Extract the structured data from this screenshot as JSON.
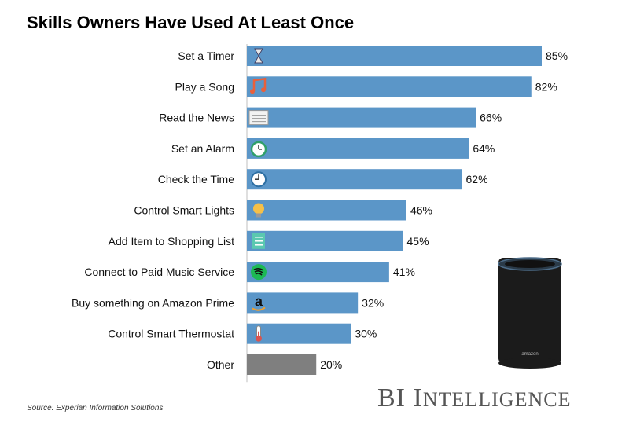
{
  "chart_data": {
    "type": "bar",
    "orientation": "horizontal",
    "title": "Skills Owners Have Used At Least Once",
    "categories": [
      "Set a Timer",
      "Play a Song",
      "Read the News",
      "Set an Alarm",
      "Check the Time",
      "Control Smart Lights",
      "Add Item to Shopping List",
      "Connect to Paid Music Service",
      "Buy something on Amazon Prime",
      "Control Smart Thermostat",
      "Other"
    ],
    "values": [
      85,
      82,
      66,
      64,
      62,
      46,
      45,
      41,
      32,
      30,
      20
    ],
    "data_labels": [
      "85%",
      "82%",
      "66%",
      "64%",
      "62%",
      "46%",
      "45%",
      "41%",
      "32%",
      "30%",
      "20%"
    ],
    "icons": [
      "hourglass-icon",
      "music-note-icon",
      "newspaper-icon",
      "alarm-clock-icon",
      "clock-icon",
      "lightbulb-icon",
      "shopping-list-icon",
      "spotify-icon",
      "amazon-icon",
      "thermometer-icon",
      ""
    ],
    "xlim": [
      0,
      100
    ],
    "grid": false,
    "colors": {
      "bar": "#5b96c8",
      "other_bar": "#7f7f7f"
    }
  },
  "source": "Source: Experian Information Solutions",
  "brand": {
    "bi": "BI ",
    "i": "I",
    "rest": "NTELLIGENCE"
  },
  "device_label": "amazon"
}
